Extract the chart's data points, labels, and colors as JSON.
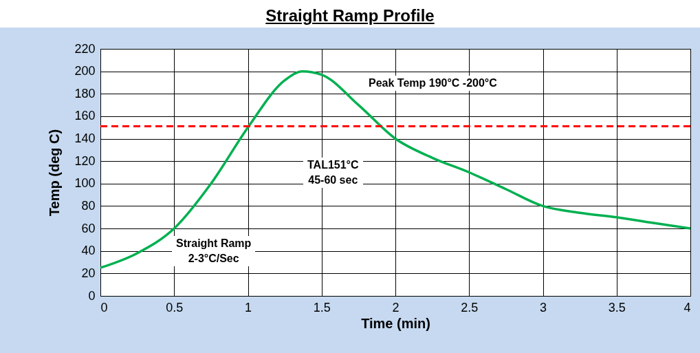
{
  "chart_data": {
    "type": "line",
    "title": "Straight Ramp Profile",
    "xlabel": "Time (min)",
    "ylabel": "Temp (deg C)",
    "x": [
      0,
      0.25,
      0.5,
      0.75,
      1,
      1.25,
      1.37,
      1.5,
      1.75,
      2,
      2.25,
      2.5,
      2.75,
      3,
      3.25,
      3.5,
      3.75,
      4
    ],
    "series": [
      {
        "color": "#00b050",
        "values": [
          25,
          38,
          60,
          100,
          150,
          192,
          200,
          197,
          170,
          140,
          123,
          110,
          95,
          80,
          74,
          70,
          65,
          60
        ]
      }
    ],
    "xlim": [
      0,
      4
    ],
    "xticks": [
      0,
      0.5,
      1,
      1.5,
      2,
      2.5,
      3,
      3.5,
      4
    ],
    "ylim": [
      0,
      220
    ],
    "yticks": [
      0,
      20,
      40,
      60,
      80,
      100,
      120,
      140,
      160,
      180,
      200,
      220
    ],
    "grid": true,
    "marker": "none",
    "line_style": "solid",
    "ref_lines": [
      {
        "axis": "y",
        "value": 151,
        "color": "#ff0000",
        "line_style": "dashed"
      }
    ],
    "annotations": [
      "Peak Temp 190°C -200°C",
      "TAL151°C\n45-60 sec",
      "Straight Ramp\n2-3°C/Sec"
    ]
  }
}
